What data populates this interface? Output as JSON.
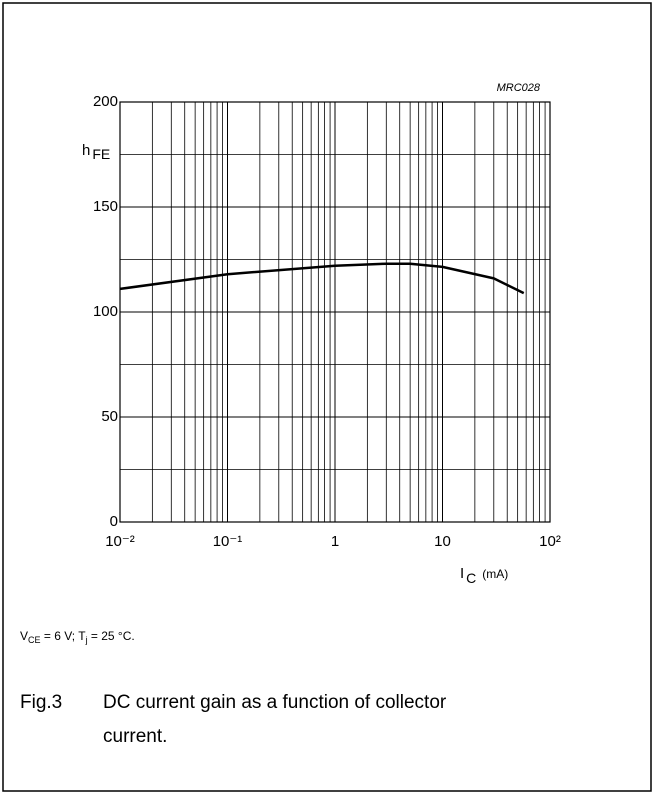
{
  "chart_data": {
    "type": "line",
    "code": "MRC028",
    "y_label": {
      "main": "h",
      "sub": "FE"
    },
    "x_label": {
      "main": "I",
      "sub": "C",
      "unit": "(mA)"
    },
    "x": [
      0.01,
      0.1,
      1,
      3,
      5,
      10,
      30,
      57
    ],
    "series": [
      {
        "name": "hFE",
        "color": "#000000",
        "values": [
          111,
          118,
          122,
          123,
          123,
          121.5,
          116,
          109
        ]
      }
    ],
    "xlim": [
      0.01,
      100
    ],
    "xscale": "log",
    "xticks": [
      {
        "value": 0.01,
        "label": "10⁻²"
      },
      {
        "value": 0.1,
        "label": "10⁻¹"
      },
      1,
      10,
      {
        "value": 100,
        "label": "10²"
      }
    ],
    "ylim": [
      0,
      200
    ],
    "yticks": [
      0,
      50,
      100,
      150,
      200
    ],
    "yminor": [
      25,
      75,
      125,
      175
    ],
    "grid": true,
    "conditions": {
      "v": "V",
      "vsub": "CE",
      "v_rest": " = 6 V; T",
      "tsub": "j",
      "t_rest": " = 25 °C."
    },
    "caption": {
      "number": "Fig.3",
      "text1": "DC current gain as a function of collector",
      "text2": "current."
    }
  }
}
